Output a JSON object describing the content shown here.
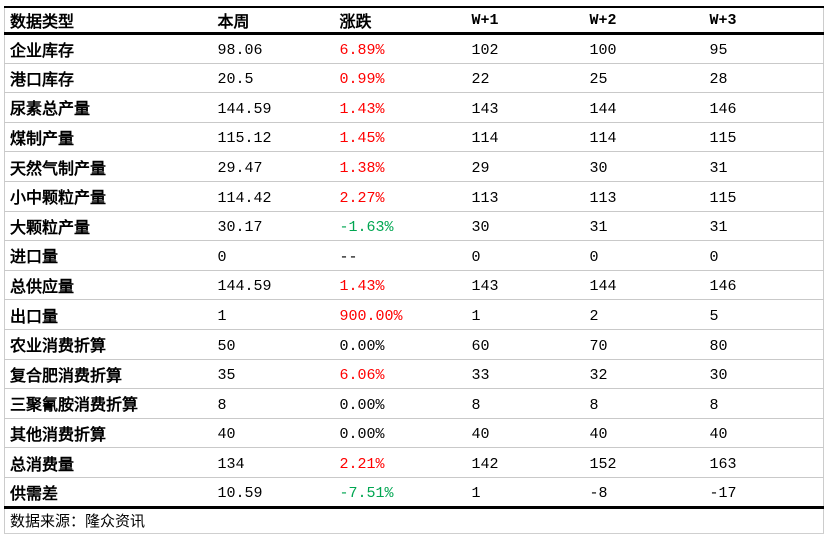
{
  "colors": {
    "up": "#ff0000",
    "down": "#00a651",
    "neutral": "#000000",
    "header_rule": "#000000",
    "row_separator": "#c9c9c9"
  },
  "table": {
    "headers": [
      "数据类型",
      "本周",
      "涨跌",
      "W+1",
      "W+2",
      "W+3"
    ],
    "rows": [
      {
        "label": "企业库存",
        "week": "98.06",
        "change": "6.89%",
        "change_color": "up",
        "w1": "102",
        "w2": "100",
        "w3": "95"
      },
      {
        "label": "港口库存",
        "week": "20.5",
        "change": "0.99%",
        "change_color": "up",
        "w1": "22",
        "w2": "25",
        "w3": "28"
      },
      {
        "label": "尿素总产量",
        "week": "144.59",
        "change": "1.43%",
        "change_color": "up",
        "w1": "143",
        "w2": "144",
        "w3": "146"
      },
      {
        "label": "煤制产量",
        "week": "115.12",
        "change": "1.45%",
        "change_color": "up",
        "w1": "114",
        "w2": "114",
        "w3": "115"
      },
      {
        "label": "天然气制产量",
        "week": "29.47",
        "change": "1.38%",
        "change_color": "up",
        "w1": "29",
        "w2": "30",
        "w3": "31"
      },
      {
        "label": "小中颗粒产量",
        "week": "114.42",
        "change": "2.27%",
        "change_color": "up",
        "w1": "113",
        "w2": "113",
        "w3": "115"
      },
      {
        "label": "大颗粒产量",
        "week": "30.17",
        "change": "-1.63%",
        "change_color": "down",
        "w1": "30",
        "w2": "31",
        "w3": "31"
      },
      {
        "label": "进口量",
        "week": "0",
        "change": "--",
        "change_color": "neutral",
        "w1": "0",
        "w2": "0",
        "w3": "0"
      },
      {
        "label": "总供应量",
        "week": "144.59",
        "change": "1.43%",
        "change_color": "up",
        "w1": "143",
        "w2": "144",
        "w3": "146"
      },
      {
        "label": "出口量",
        "week": "1",
        "change": "900.00%",
        "change_color": "up",
        "w1": "1",
        "w2": "2",
        "w3": "5"
      },
      {
        "label": "农业消费折算",
        "week": "50",
        "change": "0.00%",
        "change_color": "neutral",
        "w1": "60",
        "w2": "70",
        "w3": "80"
      },
      {
        "label": "复合肥消费折算",
        "week": "35",
        "change": "6.06%",
        "change_color": "up",
        "w1": "33",
        "w2": "32",
        "w3": "30"
      },
      {
        "label": "三聚氰胺消费折算",
        "week": "8",
        "change": "0.00%",
        "change_color": "neutral",
        "w1": "8",
        "w2": "8",
        "w3": "8"
      },
      {
        "label": "其他消费折算",
        "week": "40",
        "change": "0.00%",
        "change_color": "neutral",
        "w1": "40",
        "w2": "40",
        "w3": "40"
      },
      {
        "label": "总消费量",
        "week": "134",
        "change": "2.21%",
        "change_color": "up",
        "w1": "142",
        "w2": "152",
        "w3": "163"
      },
      {
        "label": "供需差",
        "week": "10.59",
        "change": "-7.51%",
        "change_color": "down",
        "w1": "1",
        "w2": "-8",
        "w3": "-17"
      }
    ],
    "source_note": "数据来源：隆众资讯"
  }
}
